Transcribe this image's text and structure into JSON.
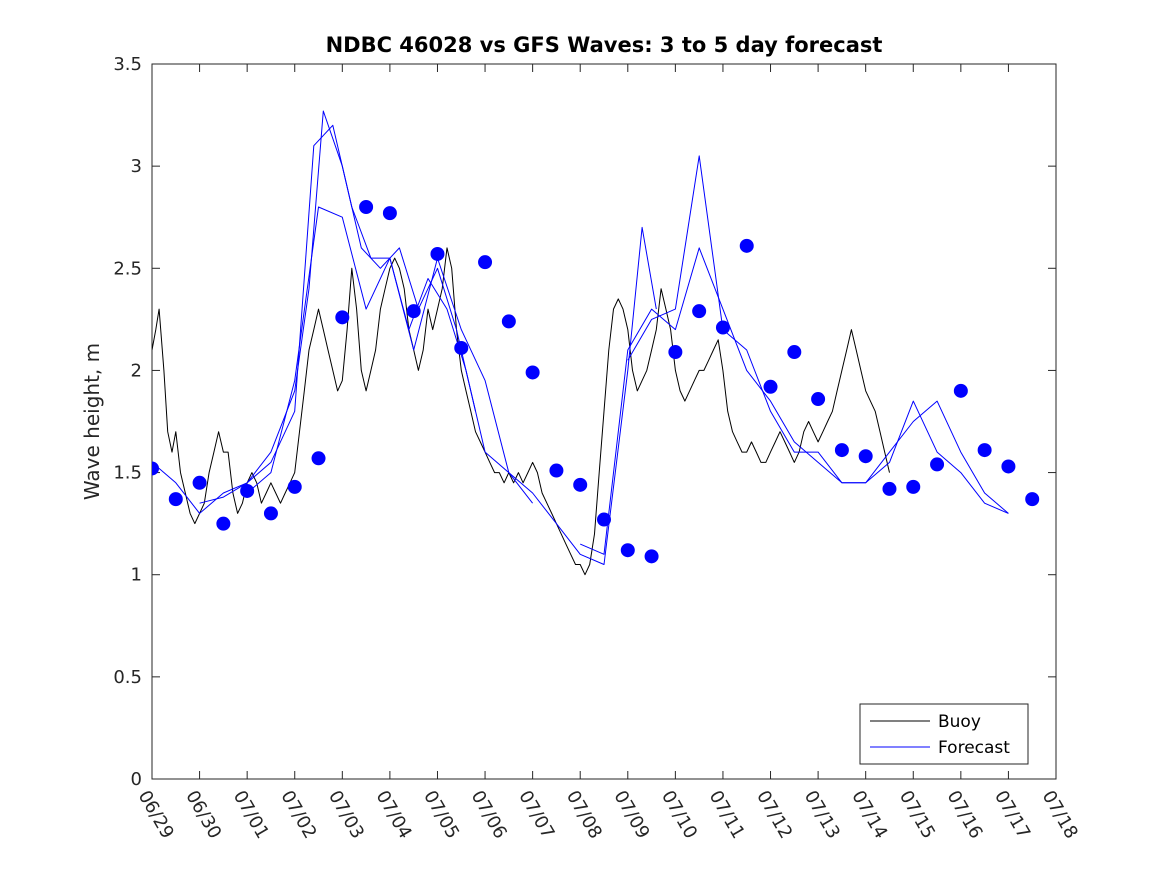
{
  "chart_data": {
    "type": "line",
    "title": "NDBC 46028 vs GFS Waves: 3 to 5 day forecast",
    "xlabel": "",
    "ylabel": "Wave height, m",
    "xlim": [
      "06/29",
      "07/18"
    ],
    "ylim": [
      0,
      3.5
    ],
    "x_ticks": [
      "06/29",
      "06/30",
      "07/01",
      "07/02",
      "07/03",
      "07/04",
      "07/05",
      "07/06",
      "07/07",
      "07/08",
      "07/09",
      "07/10",
      "07/11",
      "07/12",
      "07/13",
      "07/14",
      "07/15",
      "07/16",
      "07/17",
      "07/18"
    ],
    "y_ticks": [
      "0",
      "0.5",
      "1",
      "1.5",
      "2",
      "2.5",
      "3",
      "3.5"
    ],
    "grid": false,
    "legend_position": "bottom-right",
    "colors": {
      "buoy": "#000000",
      "forecast": "#0000ff"
    },
    "series": [
      {
        "name": "Buoy",
        "x_unit": "days since 06/29",
        "points": [
          [
            0.0,
            2.1
          ],
          [
            0.08,
            2.2
          ],
          [
            0.15,
            2.3
          ],
          [
            0.25,
            2.0
          ],
          [
            0.33,
            1.7
          ],
          [
            0.42,
            1.6
          ],
          [
            0.5,
            1.7
          ],
          [
            0.6,
            1.5
          ],
          [
            0.7,
            1.4
          ],
          [
            0.8,
            1.3
          ],
          [
            0.9,
            1.25
          ],
          [
            1.0,
            1.3
          ],
          [
            1.1,
            1.35
          ],
          [
            1.2,
            1.5
          ],
          [
            1.3,
            1.6
          ],
          [
            1.4,
            1.7
          ],
          [
            1.5,
            1.6
          ],
          [
            1.6,
            1.6
          ],
          [
            1.7,
            1.4
          ],
          [
            1.8,
            1.3
          ],
          [
            1.9,
            1.35
          ],
          [
            2.0,
            1.45
          ],
          [
            2.1,
            1.5
          ],
          [
            2.2,
            1.45
          ],
          [
            2.3,
            1.35
          ],
          [
            2.4,
            1.4
          ],
          [
            2.5,
            1.45
          ],
          [
            2.6,
            1.4
          ],
          [
            2.7,
            1.35
          ],
          [
            2.8,
            1.4
          ],
          [
            2.9,
            1.45
          ],
          [
            3.0,
            1.5
          ],
          [
            3.1,
            1.7
          ],
          [
            3.2,
            1.9
          ],
          [
            3.3,
            2.1
          ],
          [
            3.4,
            2.2
          ],
          [
            3.5,
            2.3
          ],
          [
            3.6,
            2.2
          ],
          [
            3.7,
            2.1
          ],
          [
            3.8,
            2.0
          ],
          [
            3.9,
            1.9
          ],
          [
            4.0,
            1.95
          ],
          [
            4.1,
            2.2
          ],
          [
            4.2,
            2.5
          ],
          [
            4.3,
            2.3
          ],
          [
            4.4,
            2.0
          ],
          [
            4.5,
            1.9
          ],
          [
            4.6,
            2.0
          ],
          [
            4.7,
            2.1
          ],
          [
            4.8,
            2.3
          ],
          [
            4.9,
            2.4
          ],
          [
            5.0,
            2.5
          ],
          [
            5.1,
            2.55
          ],
          [
            5.2,
            2.5
          ],
          [
            5.3,
            2.4
          ],
          [
            5.4,
            2.2
          ],
          [
            5.5,
            2.1
          ],
          [
            5.6,
            2.0
          ],
          [
            5.7,
            2.1
          ],
          [
            5.8,
            2.3
          ],
          [
            5.9,
            2.2
          ],
          [
            6.0,
            2.3
          ],
          [
            6.1,
            2.4
          ],
          [
            6.2,
            2.6
          ],
          [
            6.3,
            2.5
          ],
          [
            6.4,
            2.2
          ],
          [
            6.5,
            2.0
          ],
          [
            6.6,
            1.9
          ],
          [
            6.7,
            1.8
          ],
          [
            6.8,
            1.7
          ],
          [
            6.9,
            1.65
          ],
          [
            7.0,
            1.6
          ],
          [
            7.1,
            1.55
          ],
          [
            7.2,
            1.5
          ],
          [
            7.3,
            1.5
          ],
          [
            7.4,
            1.45
          ],
          [
            7.5,
            1.5
          ],
          [
            7.6,
            1.45
          ],
          [
            7.7,
            1.5
          ],
          [
            7.8,
            1.45
          ],
          [
            7.9,
            1.5
          ],
          [
            8.0,
            1.55
          ],
          [
            8.1,
            1.5
          ],
          [
            8.2,
            1.4
          ],
          [
            8.3,
            1.35
          ],
          [
            8.4,
            1.3
          ],
          [
            8.5,
            1.25
          ],
          [
            8.6,
            1.2
          ],
          [
            8.7,
            1.15
          ],
          [
            8.8,
            1.1
          ],
          [
            8.9,
            1.05
          ],
          [
            9.0,
            1.05
          ],
          [
            9.1,
            1.0
          ],
          [
            9.2,
            1.05
          ],
          [
            9.3,
            1.2
          ],
          [
            9.4,
            1.5
          ],
          [
            9.5,
            1.8
          ],
          [
            9.6,
            2.1
          ],
          [
            9.7,
            2.3
          ],
          [
            9.8,
            2.35
          ],
          [
            9.9,
            2.3
          ],
          [
            10.0,
            2.2
          ],
          [
            10.1,
            2.0
          ],
          [
            10.2,
            1.9
          ],
          [
            10.3,
            1.95
          ],
          [
            10.4,
            2.0
          ],
          [
            10.5,
            2.1
          ],
          [
            10.6,
            2.2
          ],
          [
            10.7,
            2.4
          ],
          [
            10.8,
            2.3
          ],
          [
            10.9,
            2.2
          ],
          [
            11.0,
            2.0
          ],
          [
            11.1,
            1.9
          ],
          [
            11.2,
            1.85
          ],
          [
            11.3,
            1.9
          ],
          [
            11.4,
            1.95
          ],
          [
            11.5,
            2.0
          ],
          [
            11.6,
            2.0
          ],
          [
            11.7,
            2.05
          ],
          [
            11.8,
            2.1
          ],
          [
            11.9,
            2.15
          ],
          [
            12.0,
            2.0
          ],
          [
            12.1,
            1.8
          ],
          [
            12.2,
            1.7
          ],
          [
            12.3,
            1.65
          ],
          [
            12.4,
            1.6
          ],
          [
            12.5,
            1.6
          ],
          [
            12.6,
            1.65
          ],
          [
            12.7,
            1.6
          ],
          [
            12.8,
            1.55
          ],
          [
            12.9,
            1.55
          ],
          [
            13.0,
            1.6
          ],
          [
            13.1,
            1.65
          ],
          [
            13.2,
            1.7
          ],
          [
            13.3,
            1.65
          ],
          [
            13.4,
            1.6
          ],
          [
            13.5,
            1.55
          ],
          [
            13.6,
            1.6
          ],
          [
            13.7,
            1.7
          ],
          [
            13.8,
            1.75
          ],
          [
            13.9,
            1.7
          ],
          [
            14.0,
            1.65
          ],
          [
            14.1,
            1.7
          ],
          [
            14.2,
            1.75
          ],
          [
            14.3,
            1.8
          ],
          [
            14.4,
            1.9
          ],
          [
            14.5,
            2.0
          ],
          [
            14.6,
            2.1
          ],
          [
            14.7,
            2.2
          ],
          [
            14.8,
            2.1
          ],
          [
            14.9,
            2.0
          ],
          [
            15.0,
            1.9
          ],
          [
            15.1,
            1.85
          ],
          [
            15.2,
            1.8
          ],
          [
            15.3,
            1.7
          ],
          [
            15.4,
            1.6
          ],
          [
            15.5,
            1.5
          ]
        ]
      },
      {
        "name": "Forecast",
        "x_unit": "days since 06/29",
        "lines": [
          [
            [
              0.0,
              1.55
            ],
            [
              0.5,
              1.45
            ],
            [
              1.0,
              1.3
            ],
            [
              1.5,
              1.4
            ],
            [
              2.0,
              1.45
            ],
            [
              2.5,
              1.6
            ],
            [
              3.0,
              1.9
            ],
            [
              3.3,
              2.4
            ],
            [
              3.6,
              3.27
            ],
            [
              4.0,
              3.0
            ],
            [
              4.4,
              2.6
            ],
            [
              4.8,
              2.5
            ],
            [
              5.2,
              2.6
            ],
            [
              5.6,
              2.3
            ],
            [
              6.0,
              2.5
            ],
            [
              6.4,
              2.2
            ],
            [
              6.8,
              1.8
            ]
          ],
          [
            [
              1.0,
              1.35
            ],
            [
              1.5,
              1.38
            ],
            [
              2.0,
              1.45
            ],
            [
              2.5,
              1.55
            ],
            [
              3.0,
              1.8
            ],
            [
              3.4,
              3.1
            ],
            [
              3.8,
              3.2
            ],
            [
              4.2,
              2.8
            ],
            [
              4.6,
              2.55
            ],
            [
              5.0,
              2.55
            ],
            [
              5.4,
              2.2
            ],
            [
              5.8,
              2.45
            ],
            [
              6.2,
              2.3
            ],
            [
              6.6,
              2.0
            ],
            [
              7.0,
              1.6
            ],
            [
              7.5,
              1.5
            ],
            [
              8.0,
              1.35
            ]
          ],
          [
            [
              2.0,
              1.4
            ],
            [
              2.5,
              1.5
            ],
            [
              3.0,
              1.95
            ],
            [
              3.5,
              2.8
            ],
            [
              4.0,
              2.75
            ],
            [
              4.5,
              2.3
            ],
            [
              5.0,
              2.55
            ],
            [
              5.5,
              2.1
            ],
            [
              6.0,
              2.55
            ],
            [
              6.5,
              2.2
            ],
            [
              7.0,
              1.95
            ],
            [
              7.5,
              1.5
            ],
            [
              8.0,
              1.4
            ],
            [
              8.5,
              1.25
            ],
            [
              9.0,
              1.1
            ],
            [
              9.5,
              1.05
            ],
            [
              10.0,
              2.0
            ],
            [
              10.3,
              2.7
            ],
            [
              10.6,
              2.3
            ]
          ],
          [
            [
              9.0,
              1.15
            ],
            [
              9.5,
              1.1
            ],
            [
              10.0,
              2.1
            ],
            [
              10.5,
              2.3
            ],
            [
              11.0,
              2.2
            ],
            [
              11.5,
              2.6
            ],
            [
              12.0,
              2.3
            ],
            [
              12.5,
              2.0
            ],
            [
              13.0,
              1.85
            ],
            [
              13.5,
              1.65
            ],
            [
              14.0,
              1.55
            ],
            [
              14.5,
              1.45
            ],
            [
              15.0,
              1.45
            ],
            [
              15.5,
              1.55
            ],
            [
              16.0,
              1.85
            ],
            [
              16.5,
              1.6
            ],
            [
              17.0,
              1.5
            ],
            [
              17.5,
              1.35
            ],
            [
              18.0,
              1.3
            ]
          ],
          [
            [
              10.0,
              2.05
            ],
            [
              10.5,
              2.25
            ],
            [
              11.0,
              2.3
            ],
            [
              11.5,
              3.05
            ],
            [
              12.0,
              2.2
            ],
            [
              12.5,
              2.1
            ],
            [
              13.0,
              1.8
            ],
            [
              13.5,
              1.6
            ],
            [
              14.0,
              1.6
            ],
            [
              14.5,
              1.45
            ],
            [
              15.0,
              1.45
            ],
            [
              15.5,
              1.6
            ],
            [
              16.0,
              1.75
            ],
            [
              16.5,
              1.85
            ],
            [
              17.0,
              1.6
            ],
            [
              17.5,
              1.4
            ],
            [
              18.0,
              1.3
            ]
          ]
        ],
        "markers": [
          [
            0.0,
            1.52
          ],
          [
            0.5,
            1.37
          ],
          [
            1.0,
            1.45
          ],
          [
            1.5,
            1.25
          ],
          [
            2.0,
            1.41
          ],
          [
            2.5,
            1.3
          ],
          [
            3.0,
            1.43
          ],
          [
            3.5,
            1.57
          ],
          [
            4.0,
            2.26
          ],
          [
            4.5,
            2.8
          ],
          [
            5.0,
            2.77
          ],
          [
            5.5,
            2.29
          ],
          [
            6.0,
            2.57
          ],
          [
            6.5,
            2.11
          ],
          [
            7.0,
            2.53
          ],
          [
            7.5,
            2.24
          ],
          [
            8.0,
            1.99
          ],
          [
            8.5,
            1.51
          ],
          [
            9.0,
            1.44
          ],
          [
            9.5,
            1.27
          ],
          [
            10.0,
            1.12
          ],
          [
            10.5,
            1.09
          ],
          [
            11.0,
            2.09
          ],
          [
            11.5,
            2.29
          ],
          [
            12.0,
            2.21
          ],
          [
            12.5,
            2.61
          ],
          [
            13.0,
            1.92
          ],
          [
            13.5,
            2.09
          ],
          [
            14.0,
            1.86
          ],
          [
            14.5,
            1.61
          ],
          [
            15.0,
            1.58
          ],
          [
            15.5,
            1.42
          ],
          [
            16.0,
            1.43
          ],
          [
            16.5,
            1.54
          ],
          [
            17.0,
            1.9
          ],
          [
            17.5,
            1.61
          ],
          [
            18.0,
            1.53
          ],
          [
            18.5,
            1.37
          ]
        ]
      }
    ]
  }
}
